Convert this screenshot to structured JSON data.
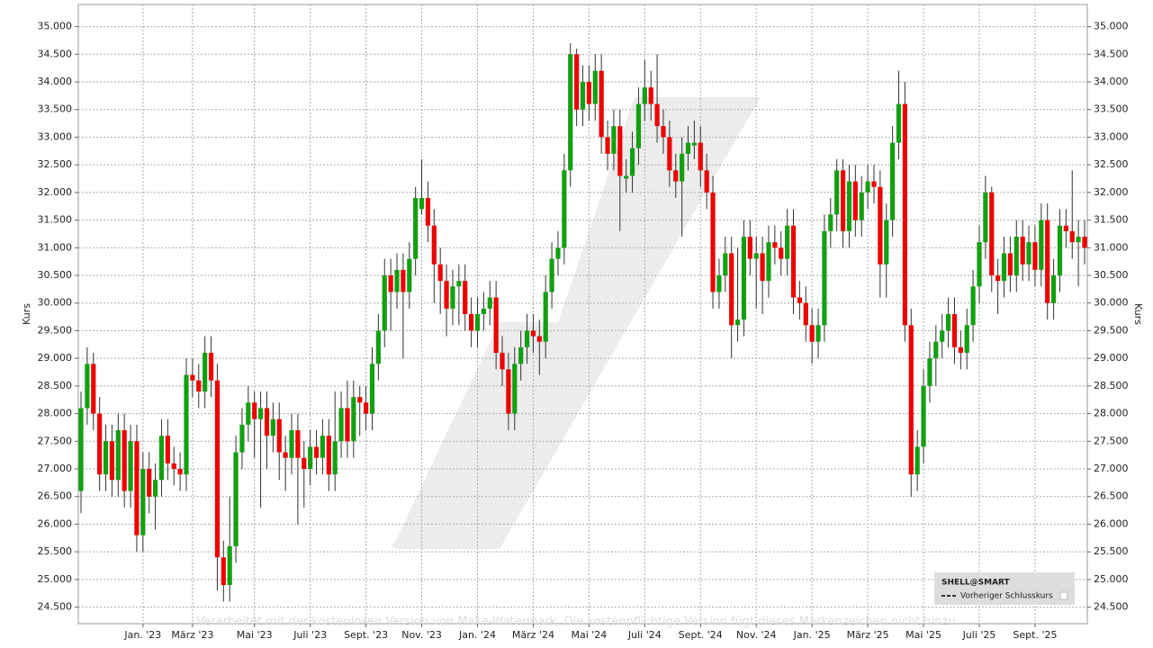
{
  "chart_data": {
    "type": "candlestick",
    "y_axis_label": "Kurs",
    "legend": {
      "title": "SHELL@SMART",
      "entry": "Vorheriger Schlusskurs"
    },
    "watermark": "Verarbeitet mit der kostenlosen Version von Make-Watermark. Die kostenpflichtige Version fügt dieses Markenzeichen nicht hinzu",
    "up_color": "#12a012",
    "down_color": "#ee0000",
    "grid": true,
    "ylim": [
      24.2,
      35.4
    ],
    "yticks": [
      {
        "value": 24.5,
        "label": "24.500"
      },
      {
        "value": 25,
        "label": "25.000"
      },
      {
        "value": 25.5,
        "label": "25.500"
      },
      {
        "value": 26,
        "label": "26.000"
      },
      {
        "value": 26.5,
        "label": "26.500"
      },
      {
        "value": 27,
        "label": "27.000"
      },
      {
        "value": 27.5,
        "label": "27.500"
      },
      {
        "value": 28,
        "label": "28.000"
      },
      {
        "value": 28.5,
        "label": "28.500"
      },
      {
        "value": 29,
        "label": "29.000"
      },
      {
        "value": 29.5,
        "label": "29.500"
      },
      {
        "value": 30,
        "label": "30.000"
      },
      {
        "value": 30.5,
        "label": "30.500"
      },
      {
        "value": 31,
        "label": "31.000"
      },
      {
        "value": 31.5,
        "label": "31.500"
      },
      {
        "value": 32,
        "label": "32.000"
      },
      {
        "value": 32.5,
        "label": "32.500"
      },
      {
        "value": 33,
        "label": "33.000"
      },
      {
        "value": 33.5,
        "label": "33.500"
      },
      {
        "value": 34,
        "label": "34.000"
      },
      {
        "value": 34.5,
        "label": "34.500"
      },
      {
        "value": 35,
        "label": "35.000"
      }
    ],
    "categories": [
      null,
      null,
      null,
      null,
      null,
      null,
      null,
      null,
      null,
      null,
      "Jan. '23",
      null,
      null,
      null,
      null,
      null,
      null,
      null,
      "März '23",
      null,
      null,
      null,
      null,
      null,
      null,
      null,
      null,
      null,
      "Mai '23",
      null,
      null,
      null,
      null,
      null,
      null,
      null,
      null,
      "Juli '23",
      null,
      null,
      null,
      null,
      null,
      null,
      null,
      null,
      "Sept. '23",
      null,
      null,
      null,
      null,
      null,
      null,
      null,
      null,
      "Nov. '23",
      null,
      null,
      null,
      null,
      null,
      null,
      null,
      null,
      "Jan. '24",
      null,
      null,
      null,
      null,
      null,
      null,
      null,
      null,
      "März '24",
      null,
      null,
      null,
      null,
      null,
      null,
      null,
      null,
      "Mai '24",
      null,
      null,
      null,
      null,
      null,
      null,
      null,
      null,
      "Juli '24",
      null,
      null,
      null,
      null,
      null,
      null,
      null,
      null,
      "Sept. '24",
      null,
      null,
      null,
      null,
      null,
      null,
      null,
      null,
      "Nov. '24",
      null,
      null,
      null,
      null,
      null,
      null,
      null,
      null,
      "Jan. '25",
      null,
      null,
      null,
      null,
      null,
      null,
      null,
      null,
      "März '25",
      null,
      null,
      null,
      null,
      null,
      null,
      null,
      null,
      "Mai '25",
      null,
      null,
      null,
      null,
      null,
      null,
      null,
      null,
      "Juli '25",
      null,
      null,
      null,
      null,
      null,
      null,
      null,
      null,
      "Sept. '25",
      null,
      null,
      null,
      null,
      null,
      null,
      null,
      null
    ],
    "open": [
      26.6,
      28.1,
      28.9,
      28.0,
      26.9,
      27.5,
      26.8,
      27.7,
      26.6,
      27.5,
      25.8,
      27.0,
      26.5,
      26.8,
      27.6,
      27.1,
      27.0,
      26.9,
      28.7,
      28.6,
      28.4,
      29.1,
      28.6,
      25.4,
      24.9,
      25.6,
      27.3,
      27.8,
      28.2,
      27.9,
      28.1,
      27.6,
      27.9,
      27.3,
      27.2,
      27.7,
      27.2,
      27.0,
      27.4,
      27.2,
      27.6,
      26.9,
      27.5,
      28.1,
      27.5,
      28.3,
      28.2,
      28.0,
      28.9,
      29.5,
      30.5,
      30.2,
      30.6,
      30.2,
      30.8,
      31.7,
      31.9,
      31.4,
      30.7,
      30.4,
      29.9,
      30.3,
      30.4,
      29.8,
      29.5,
      29.8,
      29.9,
      30.1,
      29.1,
      28.8,
      28.0,
      28.9,
      29.2,
      29.5,
      29.4,
      29.3,
      30.2,
      30.8,
      31.0,
      32.4,
      34.5,
      33.5,
      34.0,
      33.6,
      34.2,
      33.0,
      32.7,
      33.2,
      32.25,
      32.3,
      32.8,
      33.6,
      33.9,
      33.6,
      33.2,
      33.0,
      32.4,
      32.2,
      32.7,
      32.85,
      32.9,
      32.4,
      32.0,
      30.2,
      30.5,
      30.9,
      29.6,
      29.7,
      31.2,
      30.8,
      30.9,
      30.4,
      31.1,
      31.0,
      30.8,
      31.4,
      30.1,
      30.0,
      29.6,
      29.3,
      29.6,
      31.3,
      31.6,
      32.4,
      31.3,
      32.2,
      31.5,
      32.0,
      32.2,
      32.1,
      30.7,
      31.5,
      32.9,
      33.6,
      29.6,
      26.9,
      27.4,
      28.5,
      29.0,
      29.3,
      29.5,
      29.8,
      29.2,
      29.1,
      29.6,
      30.3,
      31.1,
      32.0,
      30.5,
      30.4,
      30.9,
      30.5,
      31.2,
      30.7,
      31.1,
      30.6,
      31.5,
      30.0,
      30.5,
      31.4,
      31.3,
      31.1,
      31.2
    ],
    "high": [
      28.4,
      29.2,
      29.1,
      28.3,
      27.8,
      27.8,
      28.0,
      28.0,
      27.8,
      27.8,
      27.3,
      27.3,
      27.1,
      27.9,
      27.9,
      27.4,
      27.3,
      29.0,
      29.0,
      28.9,
      29.4,
      29.4,
      28.9,
      25.7,
      26.5,
      27.6,
      28.1,
      28.5,
      28.4,
      28.4,
      28.4,
      28.2,
      28.2,
      27.6,
      28.0,
      28.0,
      27.5,
      27.7,
      27.7,
      27.9,
      27.9,
      28.4,
      28.4,
      28.6,
      28.6,
      28.5,
      28.5,
      29.2,
      29.8,
      30.8,
      30.8,
      30.9,
      30.9,
      31.1,
      32.1,
      32.6,
      32.2,
      31.7,
      31.0,
      30.7,
      30.6,
      30.7,
      30.7,
      30.1,
      30.1,
      30.2,
      30.4,
      30.4,
      29.4,
      29.1,
      29.2,
      29.5,
      29.8,
      29.8,
      29.7,
      30.5,
      31.1,
      31.3,
      32.7,
      34.7,
      34.6,
      34.3,
      34.3,
      34.5,
      34.5,
      33.3,
      33.5,
      33.5,
      32.6,
      33.1,
      33.9,
      34.4,
      34.2,
      34.5,
      33.5,
      33.3,
      32.7,
      33.0,
      33.2,
      33.3,
      33.2,
      32.7,
      32.3,
      30.8,
      31.2,
      31.2,
      31.0,
      31.5,
      31.5,
      31.2,
      31.2,
      31.4,
      31.4,
      31.3,
      31.7,
      31.7,
      30.4,
      30.3,
      29.9,
      29.9,
      31.6,
      31.9,
      32.6,
      32.6,
      32.5,
      32.5,
      32.3,
      32.5,
      32.5,
      32.4,
      31.8,
      33.2,
      34.2,
      34.0,
      29.9,
      27.7,
      28.8,
      29.3,
      29.6,
      29.8,
      30.1,
      30.1,
      29.5,
      29.9,
      30.6,
      31.4,
      32.3,
      32.1,
      30.8,
      31.2,
      31.2,
      31.5,
      31.5,
      31.4,
      31.4,
      31.8,
      31.8,
      30.8,
      31.7,
      31.7,
      32.4,
      31.5,
      31.5
    ],
    "low": [
      26.2,
      27.8,
      27.7,
      26.6,
      26.6,
      26.5,
      26.5,
      26.3,
      26.3,
      25.5,
      25.5,
      26.2,
      25.9,
      26.5,
      26.8,
      26.7,
      26.6,
      26.6,
      28.3,
      28.1,
      28.1,
      28.3,
      24.8,
      24.6,
      24.6,
      25.3,
      27.0,
      27.5,
      27.2,
      26.3,
      27.0,
      27.3,
      26.8,
      26.6,
      26.9,
      26.0,
      26.3,
      26.7,
      26.9,
      26.9,
      26.6,
      26.6,
      27.2,
      27.2,
      27.2,
      27.6,
      27.7,
      27.7,
      28.6,
      29.2,
      29.5,
      29.9,
      29.0,
      29.9,
      30.5,
      31.6,
      31.1,
      30.0,
      29.8,
      29.4,
      29.6,
      29.6,
      29.5,
      29.2,
      29.2,
      29.5,
      29.6,
      28.8,
      28.5,
      27.7,
      27.7,
      28.6,
      28.9,
      29.1,
      28.7,
      29.0,
      29.9,
      30.5,
      30.7,
      32.1,
      33.2,
      33.2,
      33.3,
      33.3,
      32.7,
      32.4,
      32.4,
      31.3,
      32.0,
      32.0,
      32.5,
      33.3,
      33.3,
      32.9,
      32.7,
      32.1,
      31.9,
      31.2,
      32.4,
      32.6,
      32.1,
      31.7,
      29.9,
      29.9,
      30.2,
      29.0,
      29.3,
      29.4,
      30.5,
      29.9,
      29.8,
      30.1,
      30.7,
      30.5,
      30.5,
      29.8,
      29.7,
      29.3,
      28.9,
      29.0,
      29.3,
      31.0,
      31.3,
      31.0,
      31.0,
      31.2,
      31.2,
      31.7,
      31.8,
      30.1,
      30.1,
      31.2,
      32.6,
      29.3,
      26.5,
      26.6,
      27.1,
      28.2,
      28.5,
      29.0,
      29.2,
      28.9,
      28.8,
      28.8,
      29.3,
      30.0,
      30.8,
      30.2,
      29.8,
      30.1,
      30.2,
      30.2,
      30.4,
      30.4,
      30.3,
      30.3,
      29.7,
      29.7,
      30.2,
      31.0,
      30.8,
      30.3,
      30.7
    ],
    "close": [
      28.1,
      28.9,
      28.0,
      26.9,
      27.5,
      26.8,
      27.7,
      26.6,
      27.5,
      25.8,
      27.0,
      26.5,
      26.8,
      27.6,
      27.1,
      27.0,
      26.9,
      28.7,
      28.6,
      28.4,
      29.1,
      28.6,
      25.4,
      24.9,
      25.6,
      27.3,
      27.8,
      28.2,
      27.9,
      28.1,
      27.6,
      27.9,
      27.3,
      27.2,
      27.7,
      27.2,
      27.0,
      27.4,
      27.2,
      27.6,
      26.9,
      27.5,
      28.1,
      27.5,
      28.3,
      28.2,
      28.0,
      28.9,
      29.5,
      30.5,
      30.2,
      30.6,
      30.2,
      30.8,
      31.9,
      31.9,
      31.4,
      30.7,
      30.4,
      29.9,
      30.3,
      30.4,
      29.8,
      29.5,
      29.8,
      29.9,
      30.1,
      29.1,
      28.8,
      28.0,
      28.9,
      29.2,
      29.5,
      29.4,
      29.3,
      30.2,
      30.8,
      31.0,
      32.4,
      34.5,
      33.5,
      34.0,
      33.6,
      34.2,
      33.0,
      32.7,
      33.2,
      32.3,
      32.3,
      32.8,
      33.6,
      33.9,
      33.6,
      33.2,
      33.0,
      32.4,
      32.2,
      32.7,
      32.9,
      32.9,
      32.4,
      32.0,
      30.2,
      30.5,
      30.9,
      29.6,
      29.7,
      31.2,
      30.8,
      30.9,
      30.4,
      31.1,
      31.0,
      30.8,
      31.4,
      30.1,
      30.0,
      29.6,
      29.3,
      29.6,
      31.3,
      31.6,
      32.4,
      31.3,
      32.2,
      31.5,
      32.0,
      32.2,
      32.1,
      30.7,
      31.5,
      32.9,
      33.6,
      29.6,
      26.9,
      27.4,
      28.5,
      29.0,
      29.3,
      29.5,
      29.8,
      29.2,
      29.1,
      29.6,
      30.3,
      31.1,
      32.0,
      30.5,
      30.4,
      30.9,
      30.5,
      31.2,
      30.7,
      31.1,
      30.6,
      31.5,
      30.0,
      30.5,
      31.4,
      31.3,
      31.1,
      31.2,
      31.0
    ]
  }
}
